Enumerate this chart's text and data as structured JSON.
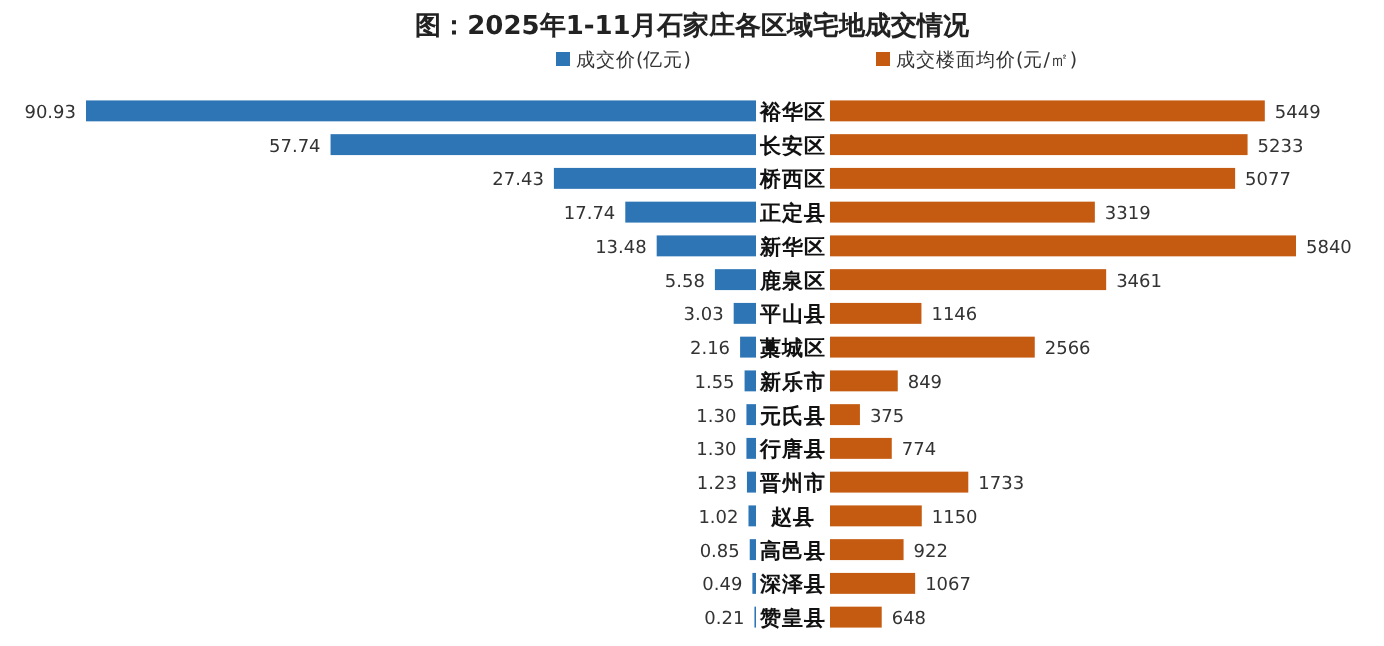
{
  "chart_data": [
    {
      "type": "bar",
      "orientation": "horizontal",
      "title": "图：2025年1-11月石家庄各区域宅地成交情况",
      "legend": "top",
      "categories": [
        "裕华区",
        "长安区",
        "桥西区",
        "正定县",
        "新华区",
        "鹿泉区",
        "平山县",
        "藁城区",
        "新乐市",
        "元氏县",
        "行唐县",
        "晋州市",
        "赵县",
        "高邑县",
        "深泽县",
        "赞皇县"
      ],
      "series": [
        {
          "name": "成交价(亿元)",
          "color": "#2e75b6",
          "values": [
            90.93,
            57.74,
            27.43,
            17.74,
            13.48,
            5.58,
            3.03,
            2.16,
            1.55,
            1.3,
            1.3,
            1.23,
            1.02,
            0.85,
            0.49,
            0.21
          ],
          "value_labels": [
            "90.93",
            "57.74",
            "27.43",
            "17.74",
            "13.48",
            "5.58",
            "3.03",
            "2.16",
            "1.55",
            "1.30",
            "1.30",
            "1.23",
            "1.02",
            "0.85",
            "0.49",
            "0.21"
          ]
        }
      ]
    },
    {
      "type": "bar",
      "orientation": "horizontal",
      "legend": "top",
      "data_labels": true,
      "categories": [
        null,
        null,
        null,
        null,
        null,
        null,
        null,
        null,
        null,
        null,
        null,
        null,
        null,
        null,
        null,
        null
      ],
      "series": [
        {
          "name": "成交楼面均价(元/㎡)",
          "color": "#c55a11",
          "values": [
            5449,
            5233,
            5077,
            3319,
            5840,
            3461,
            1146,
            2566,
            849,
            375,
            774,
            1733,
            1150,
            922,
            1067,
            648
          ]
        }
      ]
    }
  ]
}
